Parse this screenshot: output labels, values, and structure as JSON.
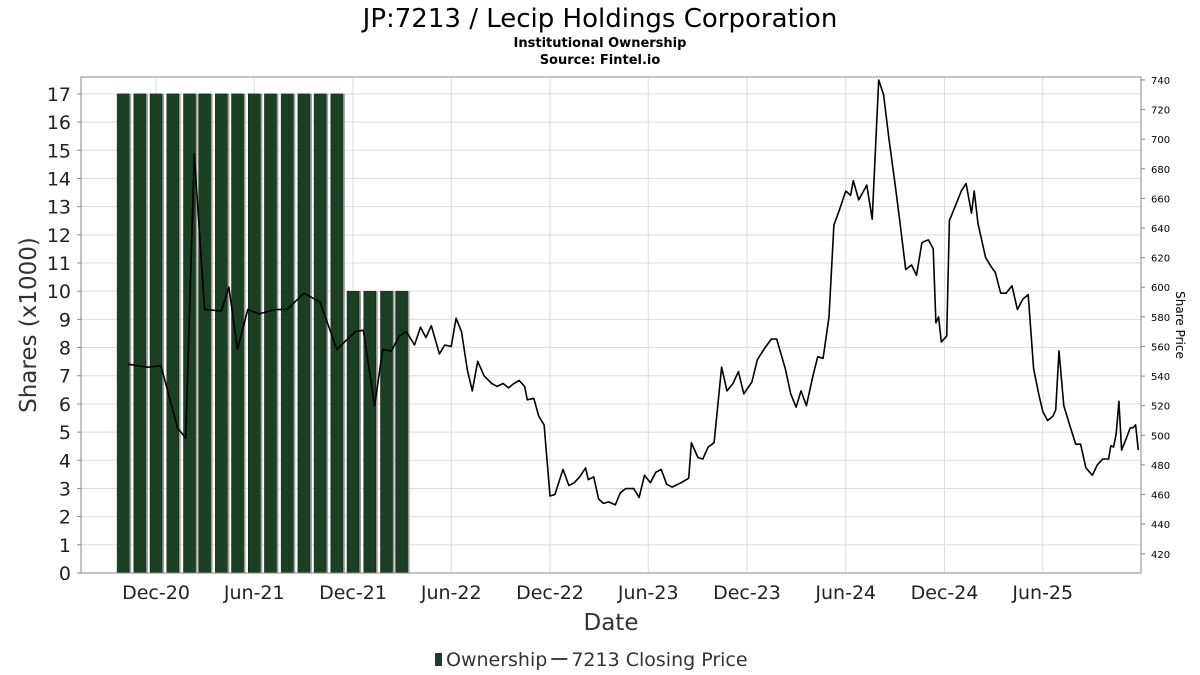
{
  "title": "JP:7213 / Lecip Holdings Corporation",
  "subtitle": "Institutional Ownership",
  "source": "Source: Fintel.io",
  "chart_data": {
    "type": "bar+line",
    "xlabel": "Date",
    "ylabel": "Shares (x1000)",
    "y2label": "Share Price",
    "x_range": [
      "2020-07-15",
      "2025-11-30"
    ],
    "ylim": [
      0,
      17.6
    ],
    "y2lim": [
      407,
      742
    ],
    "grid": true,
    "legend_position": "bottom-center",
    "colors": {
      "ownership": "#1a3f22",
      "price": "#000000"
    },
    "x_ticks": [
      {
        "label": "Dec-20",
        "date": "2020-12-01"
      },
      {
        "label": "Jun-21",
        "date": "2021-06-01"
      },
      {
        "label": "Dec-21",
        "date": "2021-12-01"
      },
      {
        "label": "Jun-22",
        "date": "2022-06-01"
      },
      {
        "label": "Dec-22",
        "date": "2022-12-01"
      },
      {
        "label": "Jun-23",
        "date": "2023-06-01"
      },
      {
        "label": "Dec-23",
        "date": "2023-12-01"
      },
      {
        "label": "Jun-24",
        "date": "2024-06-01"
      },
      {
        "label": "Dec-24",
        "date": "2024-12-01"
      },
      {
        "label": "Jun-25",
        "date": "2025-06-01"
      }
    ],
    "y_ticks": [
      0,
      1,
      2,
      3,
      4,
      5,
      6,
      7,
      8,
      9,
      10,
      11,
      12,
      13,
      14,
      15,
      16,
      17
    ],
    "y2_ticks": [
      420,
      440,
      460,
      480,
      500,
      520,
      540,
      560,
      580,
      600,
      620,
      640,
      660,
      680,
      700,
      720,
      740
    ],
    "series": [
      {
        "name": "Ownership",
        "type": "bar",
        "x": [
          "2020-10-01",
          "2020-11-01",
          "2020-12-01",
          "2021-01-01",
          "2021-02-01",
          "2021-03-01",
          "2021-04-01",
          "2021-05-01",
          "2021-06-01",
          "2021-07-01",
          "2021-08-01",
          "2021-09-01",
          "2021-10-01",
          "2021-11-01",
          "2021-12-01",
          "2022-01-01",
          "2022-02-01",
          "2022-03-01"
        ],
        "values": [
          17,
          17,
          17,
          17,
          17,
          17,
          17,
          17,
          17,
          17,
          17,
          17,
          17,
          17,
          10,
          10,
          10,
          10
        ]
      },
      {
        "name": "7213 Closing Price",
        "type": "line",
        "points": [
          [
            "2020-10-10",
            548
          ],
          [
            "2020-11-15",
            546
          ],
          [
            "2020-12-10",
            547
          ],
          [
            "2021-01-10",
            505
          ],
          [
            "2021-01-25",
            498
          ],
          [
            "2021-02-10",
            690
          ],
          [
            "2021-03-01",
            585
          ],
          [
            "2021-04-01",
            584
          ],
          [
            "2021-04-15",
            600
          ],
          [
            "2021-05-01",
            558
          ],
          [
            "2021-05-20",
            585
          ],
          [
            "2021-06-10",
            582
          ],
          [
            "2021-07-10",
            585
          ],
          [
            "2021-08-01",
            585
          ],
          [
            "2021-09-01",
            596
          ],
          [
            "2021-10-01",
            590
          ],
          [
            "2021-11-01",
            558
          ],
          [
            "2021-12-05",
            570
          ],
          [
            "2021-12-20",
            571
          ],
          [
            "2022-01-10",
            520
          ],
          [
            "2022-01-25",
            558
          ],
          [
            "2022-02-10",
            557
          ],
          [
            "2022-02-25",
            567
          ],
          [
            "2022-03-10",
            570
          ],
          [
            "2022-03-25",
            561
          ],
          [
            "2022-04-05",
            573
          ],
          [
            "2022-04-15",
            566
          ],
          [
            "2022-04-25",
            574
          ],
          [
            "2022-05-10",
            555
          ],
          [
            "2022-05-20",
            561
          ],
          [
            "2022-06-01",
            560
          ],
          [
            "2022-06-10",
            579
          ],
          [
            "2022-06-20",
            570
          ],
          [
            "2022-07-01",
            544
          ],
          [
            "2022-07-10",
            530
          ],
          [
            "2022-07-20",
            550
          ],
          [
            "2022-08-01",
            540
          ],
          [
            "2022-08-15",
            535
          ],
          [
            "2022-08-25",
            533
          ],
          [
            "2022-09-05",
            535
          ],
          [
            "2022-09-15",
            532
          ],
          [
            "2022-09-25",
            535
          ],
          [
            "2022-10-05",
            537
          ],
          [
            "2022-10-15",
            533
          ],
          [
            "2022-10-20",
            524
          ],
          [
            "2022-11-01",
            525
          ],
          [
            "2022-11-10",
            513
          ],
          [
            "2022-11-20",
            507
          ],
          [
            "2022-12-01",
            459
          ],
          [
            "2022-12-10",
            460
          ],
          [
            "2022-12-25",
            477
          ],
          [
            "2023-01-05",
            466
          ],
          [
            "2023-01-15",
            468
          ],
          [
            "2023-01-25",
            472
          ],
          [
            "2023-02-05",
            478
          ],
          [
            "2023-02-10",
            470
          ],
          [
            "2023-02-20",
            472
          ],
          [
            "2023-03-01",
            457
          ],
          [
            "2023-03-10",
            454
          ],
          [
            "2023-03-20",
            455
          ],
          [
            "2023-04-01",
            453
          ],
          [
            "2023-04-10",
            461
          ],
          [
            "2023-04-20",
            464
          ],
          [
            "2023-05-05",
            464
          ],
          [
            "2023-05-15",
            458
          ],
          [
            "2023-05-25",
            473
          ],
          [
            "2023-06-05",
            468
          ],
          [
            "2023-06-15",
            475
          ],
          [
            "2023-06-25",
            477
          ],
          [
            "2023-07-05",
            467
          ],
          [
            "2023-07-15",
            465
          ],
          [
            "2023-08-01",
            468
          ],
          [
            "2023-08-15",
            471
          ],
          [
            "2023-08-20",
            495
          ],
          [
            "2023-09-01",
            485
          ],
          [
            "2023-09-10",
            484
          ],
          [
            "2023-09-20",
            492
          ],
          [
            "2023-10-01",
            495
          ],
          [
            "2023-10-15",
            546
          ],
          [
            "2023-10-25",
            530
          ],
          [
            "2023-11-05",
            535
          ],
          [
            "2023-11-15",
            543
          ],
          [
            "2023-11-25",
            528
          ],
          [
            "2023-12-10",
            536
          ],
          [
            "2023-12-20",
            551
          ],
          [
            "2023-12-25",
            554
          ],
          [
            "2024-01-05",
            560
          ],
          [
            "2024-01-15",
            565
          ],
          [
            "2024-01-25",
            565
          ],
          [
            "2024-02-10",
            545
          ],
          [
            "2024-02-20",
            528
          ],
          [
            "2024-03-01",
            519
          ],
          [
            "2024-03-10",
            530
          ],
          [
            "2024-03-20",
            520
          ],
          [
            "2024-04-01",
            540
          ],
          [
            "2024-04-10",
            553
          ],
          [
            "2024-04-20",
            552
          ],
          [
            "2024-05-01",
            580
          ],
          [
            "2024-05-10",
            642
          ],
          [
            "2024-05-20",
            652
          ],
          [
            "2024-06-01",
            665
          ],
          [
            "2024-06-10",
            662
          ],
          [
            "2024-06-15",
            672
          ],
          [
            "2024-06-25",
            659
          ],
          [
            "2024-07-10",
            669
          ],
          [
            "2024-07-20",
            646
          ],
          [
            "2024-08-01",
            740
          ],
          [
            "2024-08-10",
            730
          ],
          [
            "2024-08-20",
            700
          ],
          [
            "2024-09-01",
            668
          ],
          [
            "2024-09-10",
            642
          ],
          [
            "2024-09-20",
            612
          ],
          [
            "2024-10-01",
            615
          ],
          [
            "2024-10-10",
            608
          ],
          [
            "2024-10-20",
            630
          ],
          [
            "2024-10-25",
            631
          ],
          [
            "2024-11-01",
            632
          ],
          [
            "2024-11-10",
            626
          ],
          [
            "2024-11-15",
            576
          ],
          [
            "2024-11-20",
            580
          ],
          [
            "2024-11-25",
            563
          ],
          [
            "2024-12-05",
            567
          ],
          [
            "2024-12-10",
            645
          ],
          [
            "2024-12-20",
            654
          ],
          [
            "2025-01-01",
            665
          ],
          [
            "2025-01-10",
            670
          ],
          [
            "2025-01-20",
            650
          ],
          [
            "2025-01-25",
            665
          ],
          [
            "2025-02-01",
            643
          ],
          [
            "2025-02-15",
            620
          ],
          [
            "2025-02-25",
            614
          ],
          [
            "2025-03-05",
            610
          ],
          [
            "2025-03-15",
            596
          ],
          [
            "2025-03-25",
            596
          ],
          [
            "2025-04-05",
            601
          ],
          [
            "2025-04-15",
            585
          ],
          [
            "2025-04-25",
            592
          ],
          [
            "2025-05-05",
            595
          ],
          [
            "2025-05-15",
            545
          ],
          [
            "2025-05-25",
            527
          ],
          [
            "2025-06-01",
            516
          ],
          [
            "2025-06-10",
            510
          ],
          [
            "2025-06-20",
            513
          ],
          [
            "2025-06-25",
            517
          ],
          [
            "2025-07-01",
            557
          ],
          [
            "2025-07-10",
            520
          ],
          [
            "2025-07-20",
            508
          ],
          [
            "2025-08-01",
            494
          ],
          [
            "2025-08-10",
            494
          ],
          [
            "2025-08-20",
            478
          ],
          [
            "2025-09-01",
            473
          ],
          [
            "2025-09-10",
            480
          ],
          [
            "2025-09-20",
            484
          ],
          [
            "2025-10-01",
            484
          ],
          [
            "2025-10-05",
            493
          ],
          [
            "2025-10-10",
            492
          ],
          [
            "2025-10-15",
            501
          ],
          [
            "2025-10-20",
            523
          ],
          [
            "2025-10-25",
            490
          ],
          [
            "2025-11-05",
            500
          ],
          [
            "2025-11-10",
            505
          ],
          [
            "2025-11-15",
            505
          ],
          [
            "2025-11-20",
            507
          ],
          [
            "2025-11-25",
            490
          ]
        ]
      }
    ]
  }
}
